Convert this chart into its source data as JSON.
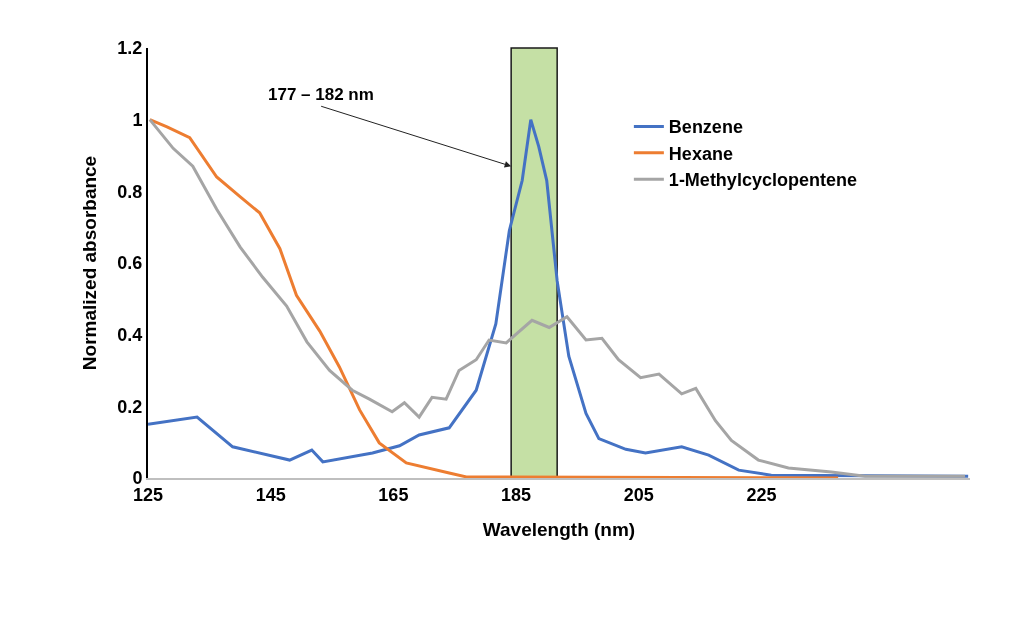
{
  "chart_data": {
    "type": "line",
    "xlabel": "Wavelength (nm)",
    "ylabel": "Normalized absorbance",
    "xlim": [
      125,
      259
    ],
    "xticks": [
      125,
      145,
      165,
      185,
      205,
      225
    ],
    "ylim": [
      0,
      1.2
    ],
    "yticks": [
      0,
      0.2,
      0.4,
      0.6,
      0.8,
      1,
      1.2
    ],
    "grid": false,
    "legend": "right",
    "marker": "none",
    "line_style": "solid",
    "bands": [
      {
        "axis": "x",
        "from": 184.2,
        "to": 191.7,
        "color": "#c5e0a5"
      }
    ],
    "annotations": [
      {
        "text": "177 – 182 nm",
        "x": 184.2,
        "y": 0.87
      }
    ],
    "series": [
      {
        "name": "Benzene",
        "color": "#4472c4",
        "x": [
          125,
          133,
          138.8,
          148.1,
          151.7,
          153.5,
          161.6,
          166,
          169.2,
          174.1,
          178.5,
          181.7,
          183.9,
          186,
          187.4,
          188.7,
          190,
          191.7,
          193.6,
          196.4,
          198.5,
          202.9,
          206.1,
          212,
          216.4,
          221.3,
          226.6,
          258.7
        ],
        "values": [
          0.15,
          0.17,
          0.087,
          0.05,
          0.078,
          0.045,
          0.07,
          0.09,
          0.12,
          0.14,
          0.245,
          0.43,
          0.69,
          0.83,
          1,
          0.925,
          0.83,
          0.55,
          0.34,
          0.18,
          0.11,
          0.08,
          0.07,
          0.087,
          0.064,
          0.022,
          0.008,
          0.005
        ]
      },
      {
        "name": "Hexane",
        "color": "#ed7d31",
        "x": [
          125.3,
          128.1,
          131.8,
          136.2,
          140,
          143.2,
          146.5,
          149.2,
          153,
          156.2,
          159.5,
          162.7,
          167.1,
          174.1,
          176.9,
          237.5
        ],
        "values": [
          1,
          0.98,
          0.95,
          0.84,
          0.785,
          0.74,
          0.64,
          0.51,
          0.41,
          0.31,
          0.19,
          0.098,
          0.042,
          0.014,
          0.003,
          0
        ]
      },
      {
        "name": "1-Methylcyclopentene",
        "color": "#a5a5a5",
        "x": [
          125.3,
          129.1,
          132.3,
          136.2,
          140,
          143.7,
          147.6,
          150.9,
          154.6,
          158.3,
          161.1,
          164.8,
          166.8,
          169.2,
          171.3,
          173.6,
          175.7,
          178.5,
          180.6,
          183.4,
          187.6,
          190.4,
          193.3,
          196.4,
          199,
          201.7,
          205.3,
          208.3,
          212,
          214.3,
          217.5,
          220.1,
          224.5,
          229.4,
          236.4,
          241.9,
          258.2
        ],
        "values": [
          1,
          0.92,
          0.87,
          0.75,
          0.645,
          0.56,
          0.48,
          0.38,
          0.3,
          0.245,
          0.22,
          0.185,
          0.21,
          0.17,
          0.225,
          0.22,
          0.3,
          0.33,
          0.385,
          0.377,
          0.44,
          0.42,
          0.45,
          0.385,
          0.39,
          0.33,
          0.28,
          0.29,
          0.235,
          0.25,
          0.16,
          0.105,
          0.05,
          0.028,
          0.017,
          0.005,
          0.005
        ]
      }
    ]
  }
}
